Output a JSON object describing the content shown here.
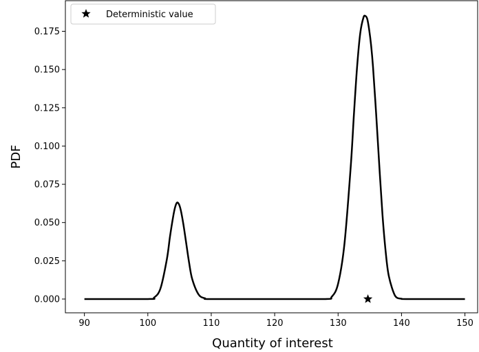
{
  "chart_data": {
    "type": "line",
    "xlabel": "Quantity of interest",
    "ylabel": "PDF",
    "xlim": [
      87,
      152
    ],
    "ylim": [
      -0.009,
      0.195
    ],
    "xticks": [
      90,
      100,
      110,
      120,
      130,
      140,
      150
    ],
    "yticks": [
      0.0,
      0.025,
      0.05,
      0.075,
      0.1,
      0.125,
      0.15,
      0.175
    ],
    "ytick_labels": [
      "0.000",
      "0.025",
      "0.050",
      "0.075",
      "0.100",
      "0.125",
      "0.150",
      "0.175"
    ],
    "series": [
      {
        "style": "solid black line",
        "x": [
          90,
          100,
          101,
          102,
          103,
          103.5,
          104,
          104.3,
          104.6,
          104.9,
          105.2,
          105.6,
          106,
          106.5,
          107,
          108,
          109,
          110,
          120,
          128,
          129,
          130,
          131,
          132,
          132.5,
          133,
          133.5,
          134,
          134.3,
          134.6,
          134.9,
          135.2,
          135.5,
          136,
          136.5,
          137,
          137.5,
          138,
          139,
          140,
          141,
          150
        ],
        "y": [
          0.0,
          0.0,
          0.001,
          0.007,
          0.026,
          0.041,
          0.054,
          0.06,
          0.063,
          0.062,
          0.058,
          0.049,
          0.038,
          0.024,
          0.013,
          0.003,
          0.0005,
          0.0,
          0.0,
          0.0,
          0.0015,
          0.01,
          0.036,
          0.087,
          0.121,
          0.152,
          0.174,
          0.184,
          0.185,
          0.183,
          0.176,
          0.166,
          0.152,
          0.121,
          0.087,
          0.055,
          0.031,
          0.015,
          0.002,
          0.0002,
          0.0,
          0.0
        ]
      }
    ],
    "markers": [
      {
        "name": "Deterministic value",
        "x": 134.7,
        "y": 0.0,
        "symbol": "star"
      }
    ],
    "legend": {
      "placement": "top-left",
      "entries": [
        {
          "label": "Deterministic value",
          "symbol": "star"
        }
      ]
    },
    "grid": false,
    "colors": {
      "line": "#000000",
      "marker": "#000000"
    }
  }
}
